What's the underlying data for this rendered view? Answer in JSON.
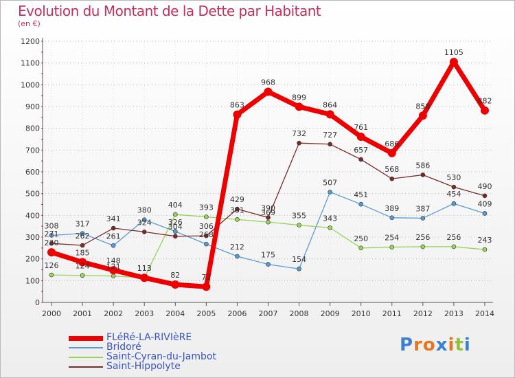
{
  "title": "Evolution du Montant de la Dette par Habitant",
  "subtitle": "(en €)",
  "brand": {
    "letters": [
      "P",
      "r",
      "o",
      "x",
      "i",
      "t",
      "i"
    ],
    "colors": [
      "#3c7fd0",
      "#e8761f",
      "#e8761f",
      "#3c7fd0",
      "#e8761f",
      "#8fc43a",
      "#3c7fd0"
    ]
  },
  "chart_data": {
    "type": "line",
    "title": "Evolution du Montant de la Dette par Habitant",
    "ylabel": "(en €)",
    "xlabel": "",
    "x": [
      "2000",
      "2001",
      "2002",
      "2003",
      "2004",
      "2005",
      "2006",
      "2007",
      "2008",
      "2009",
      "2010",
      "2011",
      "2012",
      "2013",
      "2014"
    ],
    "ylim": [
      0,
      1200
    ],
    "yticks": [
      "0",
      "100",
      "200",
      "300",
      "400",
      "500",
      "600",
      "700",
      "800",
      "900",
      "1000",
      "1100",
      "1200"
    ],
    "grid": "horizontal dotted",
    "legend_position": "bottom-left",
    "series": [
      {
        "name": "FLéRé-LA-RIVIèRE",
        "color": "#ee0000",
        "emphasis": true,
        "values": [
          230,
          185,
          148,
          113,
          82,
          72,
          863,
          968,
          899,
          864,
          761,
          686,
          858,
          1105,
          882
        ],
        "labels": [
          "230",
          "185",
          "148",
          "113",
          "82",
          "72",
          "863",
          "968",
          "899",
          "864",
          "761",
          "686",
          "858",
          "1105",
          "882"
        ]
      },
      {
        "name": "Bridoré",
        "color": "#5a9bd5",
        "values": [
          308,
          317,
          261,
          380,
          326,
          268,
          212,
          175,
          154,
          507,
          451,
          389,
          387,
          454,
          409
        ],
        "labels": [
          "308",
          "317",
          "261",
          "380",
          "326",
          "268",
          "212",
          "175",
          "154",
          "507",
          "451",
          "389",
          "387",
          "454",
          "409"
        ]
      },
      {
        "name": "Saint-Cyran-du-Jambot",
        "color": "#9ad25a",
        "values": [
          126,
          124,
          121,
          113,
          404,
          393,
          381,
          369,
          355,
          343,
          250,
          254,
          256,
          256,
          243
        ],
        "labels": [
          "126",
          "124",
          "121",
          "113",
          "404",
          "393",
          "381",
          "369",
          "355",
          "343",
          "250",
          "254",
          "256",
          "256",
          "243"
        ]
      },
      {
        "name": "Saint-Hippolyte",
        "color": "#7a2a2a",
        "values": [
          271,
          262,
          341,
          324,
          304,
          306,
          429,
          390,
          732,
          727,
          657,
          568,
          586,
          530,
          490
        ],
        "labels": [
          "271",
          "262",
          "341",
          "324",
          "304",
          "306",
          "429",
          "390",
          "732",
          "727",
          "657",
          "568",
          "586",
          "530",
          "490"
        ]
      }
    ]
  }
}
